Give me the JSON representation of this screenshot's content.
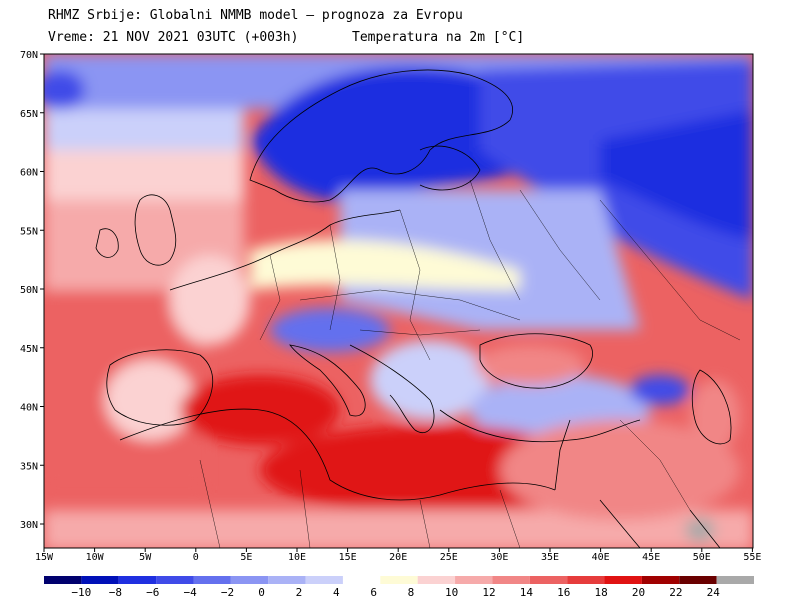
{
  "header": {
    "line1": "RHMZ Srbije: Globalni NMMB model – prognoza za Evropu",
    "line2a": "Vreme: 21 NOV 2021 03UTC (+003h)",
    "line2b": "Temperatura na 2m [°C]"
  },
  "axes": {
    "lat_labels": [
      "70N",
      "65N",
      "60N",
      "55N",
      "50N",
      "45N",
      "40N",
      "35N",
      "30N"
    ],
    "lon_labels": [
      "15W",
      "10W",
      "5W",
      "0",
      "5E",
      "10E",
      "15E",
      "20E",
      "25E",
      "30E",
      "35E",
      "40E",
      "45E",
      "50E",
      "55E"
    ]
  },
  "colorbar": {
    "labels": [
      "−10",
      "−8",
      "−6",
      "−4",
      "−2",
      "0",
      "2",
      "4",
      "6",
      "8",
      "10",
      "12",
      "14",
      "16",
      "18",
      "20",
      "22",
      "24"
    ],
    "colors": [
      "#00006e",
      "#0010b8",
      "#1f2fe0",
      "#3f4be8",
      "#6470ee",
      "#8b95f3",
      "#aab2f6",
      "#cbd0fa",
      "#ffffff",
      "#fefbd6",
      "#fbd2d2",
      "#f6aaaa",
      "#f18686",
      "#ec6262",
      "#e63c3c",
      "#e01212",
      "#a00000",
      "#6a0000",
      "#a9a9a9"
    ]
  }
}
